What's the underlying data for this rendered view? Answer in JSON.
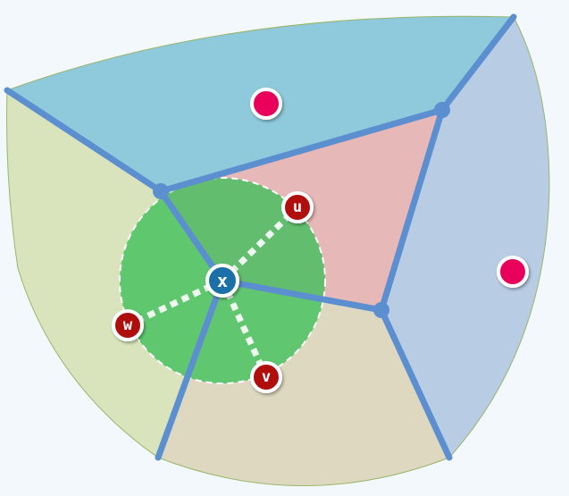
{
  "diagram": {
    "colors": {
      "background": "#f2f8fc",
      "region_top": "#8ecadb",
      "region_right": "#b8cce4",
      "region_left": "#d9e4bc",
      "region_bottom": "#ddd8bf",
      "region_center": "#e6b8b8",
      "boundary_edge": "#5b8fd0",
      "disk_fill": "#3cc05a",
      "site_marker": "#e8005a",
      "labeled_point": "#b01010",
      "center_point": "#1f6fa8"
    },
    "center_point": {
      "label": "x"
    },
    "labeled_points": [
      {
        "key": "u",
        "label": "u"
      },
      {
        "key": "v",
        "label": "v"
      },
      {
        "key": "w",
        "label": "w"
      }
    ]
  }
}
